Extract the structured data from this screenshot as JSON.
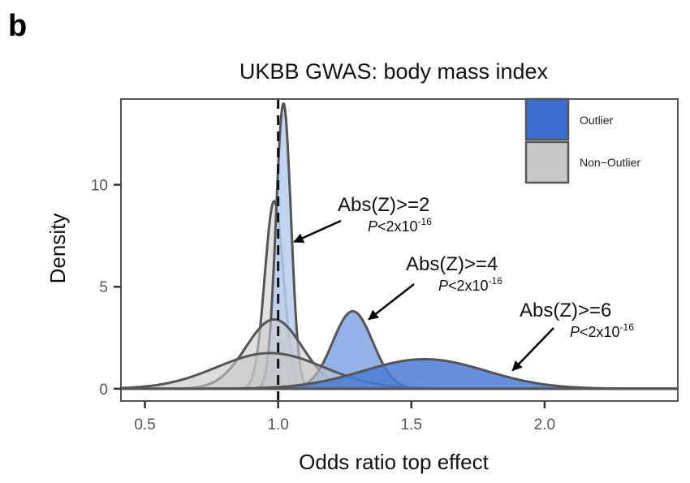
{
  "panel_label": "b",
  "chart_data": {
    "type": "area",
    "title": "UKBB GWAS: body mass index",
    "xlabel": "Odds ratio top effect",
    "ylabel": "Density",
    "xlim": [
      0.41,
      2.5
    ],
    "ylim": [
      -0.6,
      14.2
    ],
    "x_ticks": [
      0.5,
      1.0,
      1.5,
      2.0
    ],
    "x_tick_labels": [
      "0.5",
      "1.0",
      "1.5",
      "2.0"
    ],
    "y_ticks": [
      0,
      5,
      10
    ],
    "y_tick_labels": [
      "0",
      "5",
      "10"
    ],
    "grid": false,
    "reference_line": {
      "x": 1.0,
      "style": "dashed"
    },
    "legend": {
      "placement": "top-right",
      "entries": [
        {
          "label": "Outlier",
          "color": "#3a6fd0"
        },
        {
          "label": "Non−Outlier",
          "color": "#c8c8c8"
        }
      ]
    },
    "series": [
      {
        "name": "Non-Outlier Abs(Z)>=2",
        "group": "Non-Outlier",
        "color": "#cfcfcf",
        "shape": "gaussian",
        "mean": 0.985,
        "sd": 0.035,
        "peak": 9.2
      },
      {
        "name": "Outlier Abs(Z)>=2",
        "group": "Outlier",
        "color": "#b9cdee",
        "shape": "gaussian",
        "mean": 1.02,
        "sd": 0.028,
        "peak": 14.0
      },
      {
        "name": "Non-Outlier Abs(Z)>=4",
        "group": "Non-Outlier",
        "color": "#cbcbcb",
        "shape": "gaussian",
        "mean": 0.985,
        "sd": 0.105,
        "peak": 3.4
      },
      {
        "name": "Outlier Abs(Z)>=4",
        "group": "Outlier",
        "color": "#7fa5e4",
        "shape": "gaussian",
        "mean": 1.28,
        "sd": 0.075,
        "peak": 3.8
      },
      {
        "name": "Non-Outlier Abs(Z)>=6",
        "group": "Non-Outlier",
        "color": "#c4c4c4",
        "shape": "gaussian",
        "mean": 0.97,
        "sd": 0.2,
        "peak": 1.75
      },
      {
        "name": "Outlier Abs(Z)>=6",
        "group": "Outlier",
        "color": "#4a7bd6",
        "shape": "gaussian",
        "mean": 1.55,
        "sd": 0.23,
        "peak": 1.45
      }
    ],
    "annotations": [
      {
        "text": "Abs(Z)>=2",
        "p_prefix": "P",
        "p_text": "<2x10",
        "p_exp": "-16",
        "points_to": {
          "x": 1.06,
          "y": 7.2
        }
      },
      {
        "text": "Abs(Z)>=4",
        "p_prefix": "P",
        "p_text": "<2x10",
        "p_exp": "-16",
        "points_to": {
          "x": 1.34,
          "y": 3.4
        }
      },
      {
        "text": "Abs(Z)>=6",
        "p_prefix": "P",
        "p_text": "<2x10",
        "p_exp": "-16",
        "points_to": {
          "x": 1.88,
          "y": 0.9
        }
      }
    ]
  }
}
